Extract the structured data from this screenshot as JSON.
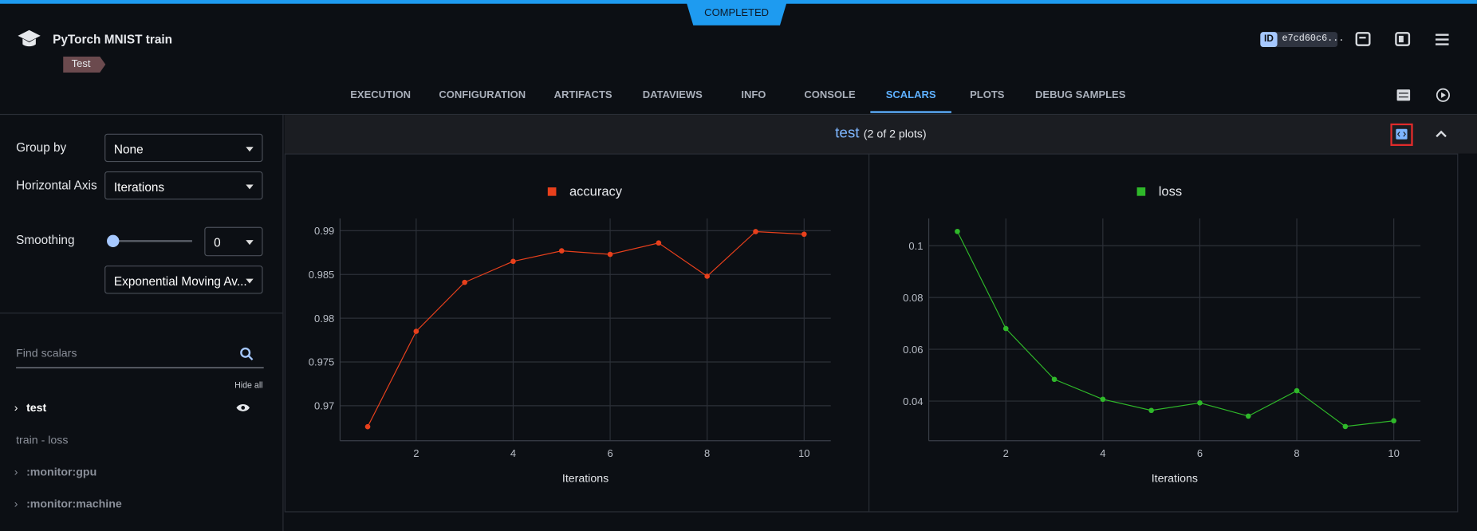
{
  "header": {
    "status": "COMPLETED",
    "title": "PyTorch MNIST train",
    "tag": "Test",
    "id_label": "ID",
    "id": "e7cd60c6..."
  },
  "tabs": [
    {
      "label": "EXECUTION"
    },
    {
      "label": "CONFIGURATION"
    },
    {
      "label": "ARTIFACTS"
    },
    {
      "label": "DATAVIEWS"
    },
    {
      "label": "INFO"
    },
    {
      "label": "CONSOLE"
    },
    {
      "label": "SCALARS",
      "active": true
    },
    {
      "label": "PLOTS"
    },
    {
      "label": "DEBUG SAMPLES"
    }
  ],
  "sidebar": {
    "group_by_label": "Group by",
    "group_by_value": "None",
    "horizontal_axis_label": "Horizontal Axis",
    "horizontal_axis_value": "Iterations",
    "smoothing_label": "Smoothing",
    "smoothing_value": "0",
    "smoothing_method": "Exponential Moving Av...",
    "search_placeholder": "Find scalars",
    "hide_all": "Hide all",
    "groups": [
      {
        "label": "test",
        "expandable": true,
        "active": true
      },
      {
        "label": "train - loss",
        "expandable": false
      },
      {
        "label": ":monitor:gpu",
        "expandable": true
      },
      {
        "label": ":monitor:machine",
        "expandable": true
      }
    ]
  },
  "section": {
    "title": "test",
    "subtitle": "(2 of 2 plots)"
  },
  "chart_data": [
    {
      "type": "line",
      "x_label": "Iterations",
      "x": [
        1,
        2,
        3,
        4,
        5,
        6,
        7,
        8,
        9,
        10
      ],
      "series": [
        {
          "name": "accuracy",
          "color": "#e8401c",
          "values": [
            0.9676,
            0.9785,
            0.9841,
            0.9865,
            0.9877,
            0.9873,
            0.9886,
            0.9848,
            0.9899,
            0.9896
          ]
        }
      ],
      "xlim": [
        0.43,
        10.55
      ],
      "xticks": [
        2,
        4,
        6,
        8,
        10
      ],
      "ylim": [
        0.966,
        0.9914
      ],
      "yticks": [
        0.97,
        0.975,
        0.98,
        0.985,
        0.99
      ],
      "grid": true
    },
    {
      "type": "line",
      "x_label": "Iterations",
      "x": [
        1,
        2,
        3,
        4,
        5,
        6,
        7,
        8,
        9,
        10
      ],
      "series": [
        {
          "name": "loss",
          "color": "#2fb82a",
          "values": [
            0.1055,
            0.068,
            0.0484,
            0.0407,
            0.0364,
            0.0393,
            0.0342,
            0.044,
            0.0302,
            0.0324
          ]
        }
      ],
      "xlim": [
        0.41,
        10.55
      ],
      "xticks": [
        2,
        4,
        6,
        8,
        10
      ],
      "ylim": [
        0.0247,
        0.1105
      ],
      "yticks": [
        0.04,
        0.06,
        0.08,
        0.1
      ],
      "grid": true
    }
  ]
}
